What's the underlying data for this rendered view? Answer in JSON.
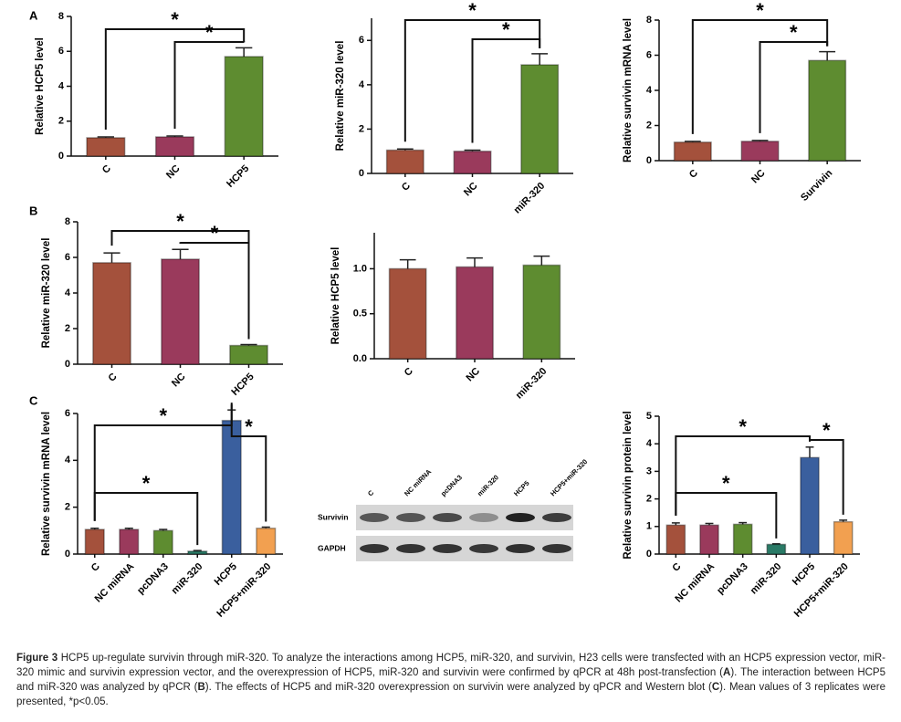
{
  "panel_labels": [
    "A",
    "B",
    "C"
  ],
  "chart_data": [
    {
      "type": "bar",
      "ylabel": "Relative HCP5 level",
      "categories": [
        "C",
        "NC",
        "HCP5"
      ],
      "colors": [
        "#a4513c",
        "#9a3a5c",
        "#5e8c30"
      ],
      "values": [
        1.05,
        1.1,
        5.7
      ],
      "errors": [
        0.05,
        0.05,
        0.5
      ],
      "ylim": [
        0,
        8
      ],
      "yticks": [
        0,
        2,
        4,
        6,
        8
      ],
      "annotations": [
        "*",
        "*"
      ]
    },
    {
      "type": "bar",
      "ylabel": "Relative miR-320 level",
      "categories": [
        "C",
        "NC",
        "miR-320"
      ],
      "colors": [
        "#a4513c",
        "#9a3a5c",
        "#5e8c30"
      ],
      "values": [
        1.05,
        1.0,
        4.9
      ],
      "errors": [
        0.05,
        0.05,
        0.5
      ],
      "ylim": [
        0,
        7
      ],
      "yticks": [
        0,
        2,
        4,
        6
      ],
      "annotations": [
        "*",
        "*"
      ]
    },
    {
      "type": "bar",
      "ylabel": "Relative survivin mRNA level",
      "categories": [
        "C",
        "NC",
        "Survivin"
      ],
      "colors": [
        "#a4513c",
        "#9a3a5c",
        "#5e8c30"
      ],
      "values": [
        1.05,
        1.1,
        5.7
      ],
      "errors": [
        0.05,
        0.05,
        0.5
      ],
      "ylim": [
        0,
        8
      ],
      "yticks": [
        0,
        2,
        4,
        6,
        8
      ],
      "annotations": [
        "*",
        "*"
      ]
    },
    {
      "type": "bar",
      "ylabel": "Relative miR-320 level",
      "categories": [
        "C",
        "NC",
        "HCP5"
      ],
      "colors": [
        "#a4513c",
        "#9a3a5c",
        "#5e8c30"
      ],
      "values": [
        5.7,
        5.9,
        1.05
      ],
      "errors": [
        0.55,
        0.55,
        0.05
      ],
      "ylim": [
        0,
        8
      ],
      "yticks": [
        0,
        2,
        4,
        6,
        8
      ],
      "annotations": [
        "*",
        "*"
      ]
    },
    {
      "type": "bar",
      "ylabel": "Relative HCP5 level",
      "categories": [
        "C",
        "NC",
        "miR-320"
      ],
      "colors": [
        "#a4513c",
        "#9a3a5c",
        "#5e8c30"
      ],
      "values": [
        1.0,
        1.02,
        1.04
      ],
      "errors": [
        0.1,
        0.1,
        0.1
      ],
      "ylim": [
        0,
        1.4
      ],
      "yticks": [
        {
          "value": 0,
          "label": "0.0"
        },
        0.5,
        {
          "value": 1,
          "label": "1.0"
        }
      ]
    },
    {
      "type": "bar",
      "ylabel": "Relative survivin mRNA level",
      "categories": [
        "C",
        "NC miRNA",
        "pcDNA3",
        "miR-320",
        "HCP5",
        "HCP5+miR-320"
      ],
      "colors": [
        "#a4513c",
        "#9a3a5c",
        "#5e8c30",
        "#2a7a66",
        "#3a5f9e",
        "#f2a050"
      ],
      "values": [
        1.05,
        1.05,
        1.0,
        0.12,
        5.7,
        1.1
      ],
      "errors": [
        0.05,
        0.05,
        0.05,
        0.03,
        0.45,
        0.05
      ],
      "ylim": [
        0,
        6
      ],
      "yticks": [
        0,
        2,
        4,
        6
      ],
      "annotations": [
        "*",
        "*",
        "*"
      ]
    },
    {
      "type": "bar",
      "ylabel": "Relative survivin protein level",
      "categories": [
        "C",
        "NC miRNA",
        "pcDNA3",
        "miR-320",
        "HCP5",
        "HCP5+miR-320"
      ],
      "colors": [
        "#a4513c",
        "#9a3a5c",
        "#5e8c30",
        "#2a7a66",
        "#3a5f9e",
        "#f2a050"
      ],
      "values": [
        1.05,
        1.05,
        1.08,
        0.35,
        3.5,
        1.17
      ],
      "errors": [
        0.08,
        0.06,
        0.06,
        0.02,
        0.38,
        0.06
      ],
      "ylim": [
        0,
        5
      ],
      "yticks": [
        0,
        1,
        2,
        3,
        4,
        5
      ],
      "annotations": [
        "*",
        "*",
        "*"
      ]
    }
  ],
  "blot": {
    "lanes": [
      "C",
      "NC miRNA",
      "pcDNA3",
      "miR-320",
      "HCP5",
      "HCP5+miR-320"
    ],
    "rows": [
      "Survivin",
      "GAPDH"
    ]
  },
  "caption": {
    "parts": [
      "Figure 3",
      " HCP5 up-regulate survivin through miR-320. To analyze the interactions among HCP5, miR-320, and survivin, H23 cells were transfected with an HCP5 expression vector, miR-320 mimic and survivin expression vector, and the overexpression of HCP5, miR-320 and survivin were confirmed by qPCR at 48h post-transfection (",
      "A",
      "). The interaction between HCP5 and miR-320 was analyzed by qPCR (",
      "B",
      "). The effects of HCP5 and miR-320 overexpression on survivin were analyzed by qPCR and Western blot (",
      "C",
      "). Mean values of 3 replicates were presented, *p<0.05."
    ]
  }
}
